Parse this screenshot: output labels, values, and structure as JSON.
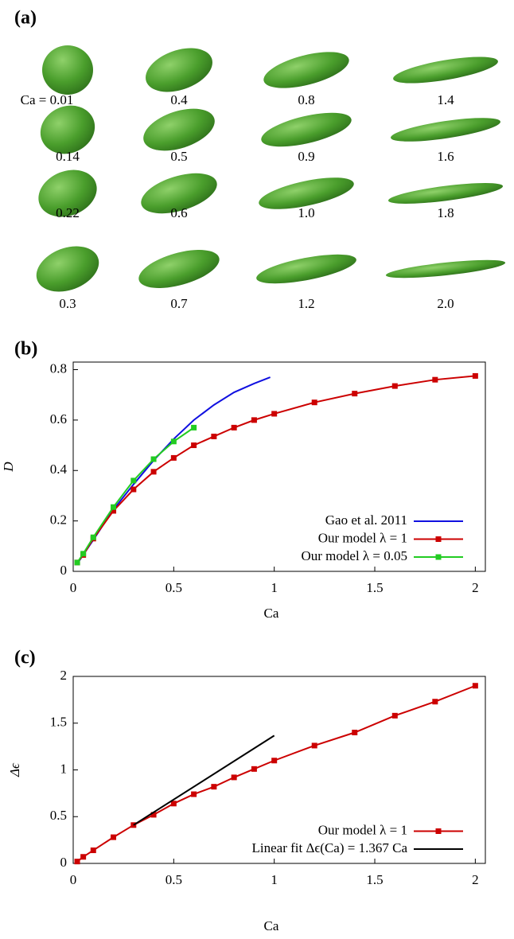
{
  "panel_a": {
    "label": "(a)",
    "shape_labels": [
      "Ca = 0.01",
      "0.4",
      "0.8",
      "1.4",
      "0.14",
      "0.5",
      "0.9",
      "1.6",
      "0.22",
      "0.6",
      "1.0",
      "1.8",
      "0.3",
      "0.7",
      "1.2",
      "2.0"
    ]
  },
  "chart_data": [
    {
      "type": "line",
      "panel": "(b)",
      "x_label": "Ca",
      "y_label": "D",
      "xlim": [
        0,
        2.05
      ],
      "ylim": [
        0,
        0.83
      ],
      "xticks": [
        0,
        0.5,
        1,
        1.5,
        2
      ],
      "yticks": [
        0,
        0.2,
        0.4,
        0.6,
        0.8
      ],
      "legend": "lower right",
      "series": [
        {
          "name": "Gao et al. 2011",
          "color": "#1010e0",
          "markers": false,
          "x": [
            0.02,
            0.1,
            0.2,
            0.3,
            0.4,
            0.5,
            0.6,
            0.7,
            0.8,
            0.9,
            0.98
          ],
          "values": [
            0.03,
            0.125,
            0.245,
            0.345,
            0.44,
            0.525,
            0.6,
            0.66,
            0.71,
            0.745,
            0.77
          ]
        },
        {
          "name": "Our model λ = 1",
          "color": "#cc0000",
          "markers": true,
          "x": [
            0.02,
            0.05,
            0.1,
            0.2,
            0.3,
            0.4,
            0.5,
            0.6,
            0.7,
            0.8,
            0.9,
            1.0,
            1.2,
            1.4,
            1.6,
            1.8,
            2.0
          ],
          "values": [
            0.035,
            0.065,
            0.13,
            0.24,
            0.325,
            0.395,
            0.45,
            0.5,
            0.535,
            0.57,
            0.6,
            0.625,
            0.67,
            0.705,
            0.735,
            0.76,
            0.775
          ]
        },
        {
          "name": "Our model λ = 0.05",
          "color": "#22cc22",
          "markers": true,
          "x": [
            0.02,
            0.05,
            0.1,
            0.2,
            0.3,
            0.4,
            0.5,
            0.6
          ],
          "values": [
            0.035,
            0.07,
            0.135,
            0.255,
            0.36,
            0.445,
            0.515,
            0.57
          ]
        }
      ]
    },
    {
      "type": "line",
      "panel": "(c)",
      "x_label": "Ca",
      "y_label": "Δϵ",
      "xlim": [
        0,
        2.05
      ],
      "ylim": [
        0,
        2
      ],
      "xticks": [
        0,
        0.5,
        1,
        1.5,
        2
      ],
      "yticks": [
        0,
        0.5,
        1,
        1.5,
        2
      ],
      "legend": "lower right",
      "series": [
        {
          "name": "Our model λ = 1",
          "color": "#cc0000",
          "markers": true,
          "x": [
            0.02,
            0.05,
            0.1,
            0.2,
            0.3,
            0.4,
            0.5,
            0.6,
            0.7,
            0.8,
            0.9,
            1.0,
            1.2,
            1.4,
            1.6,
            1.8,
            2.0
          ],
          "values": [
            0.02,
            0.07,
            0.14,
            0.28,
            0.41,
            0.52,
            0.64,
            0.74,
            0.82,
            0.92,
            1.01,
            1.1,
            1.26,
            1.4,
            1.58,
            1.73,
            1.9
          ]
        },
        {
          "name": "Linear fit Δϵ(Ca) = 1.367 Ca",
          "color": "#000000",
          "markers": false,
          "x": [
            0.3,
            1.0
          ],
          "values": [
            0.41,
            1.367
          ]
        }
      ]
    }
  ]
}
